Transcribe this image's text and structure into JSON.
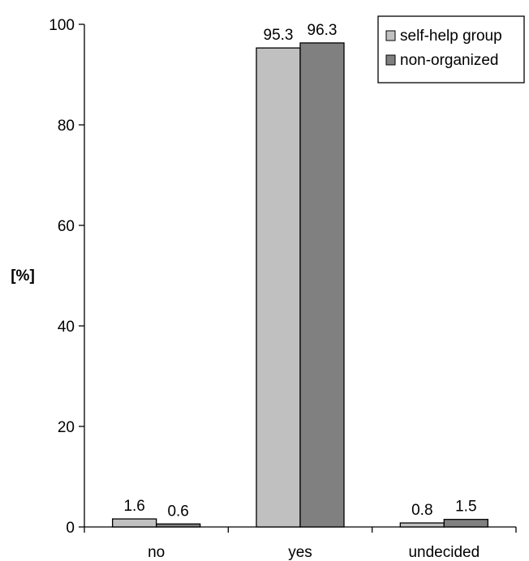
{
  "chart_data": {
    "type": "bar",
    "categories": [
      "no",
      "yes",
      "undecided"
    ],
    "series": [
      {
        "name": "self-help group",
        "values": [
          1.6,
          95.3,
          0.8
        ],
        "color": "#c0c0c0"
      },
      {
        "name": "non-organized",
        "values": [
          0.6,
          96.3,
          1.5
        ],
        "color": "#808080"
      }
    ],
    "ylabel": "[%]",
    "ylim": [
      0,
      100
    ],
    "yticks": [
      0,
      20,
      40,
      60,
      80,
      100
    ],
    "legend_position": "top-right",
    "grid": false
  }
}
